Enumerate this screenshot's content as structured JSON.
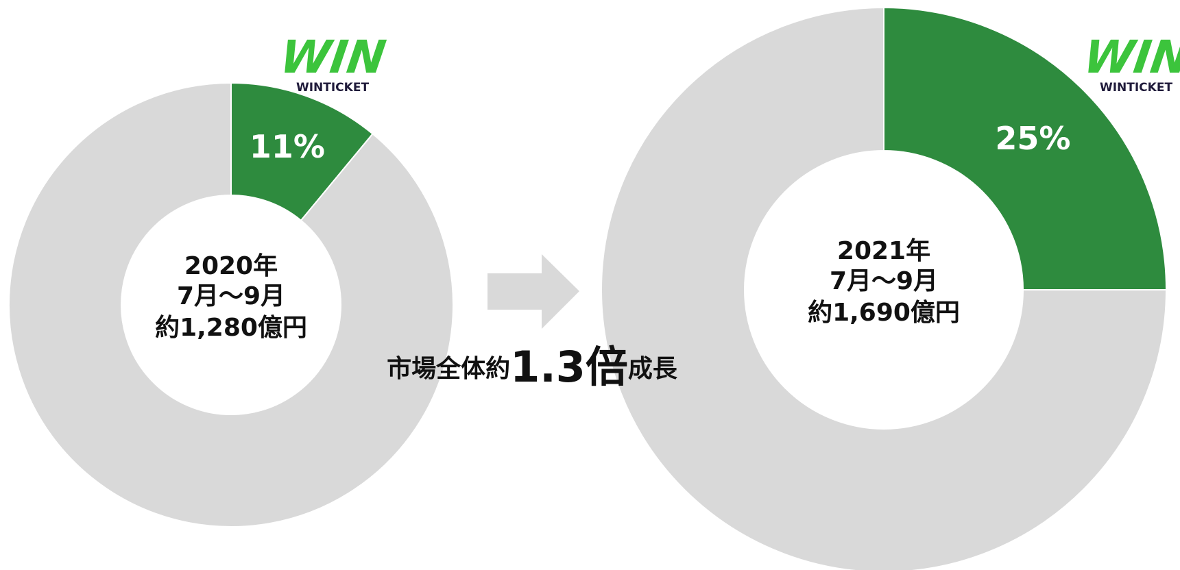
{
  "chart_data": [
    {
      "type": "donut",
      "values": [
        11,
        89
      ],
      "value_labels": [
        "11%",
        null
      ],
      "colors": [
        "#2e8b3e",
        "#d9d9d9"
      ],
      "center_text": [
        "2020年",
        "7月〜9月",
        "約1,280億円"
      ],
      "logo_mark": "WIN",
      "logo_text": "WINTICKET"
    },
    {
      "type": "donut",
      "values": [
        25,
        75
      ],
      "value_labels": [
        "25%",
        null
      ],
      "colors": [
        "#2e8b3e",
        "#d9d9d9"
      ],
      "center_text": [
        "2021年",
        "7月〜9月",
        "約1,690億円"
      ],
      "logo_mark": "WIN",
      "logo_text": "WINTICKET"
    }
  ],
  "annotation": [
    "市場全体約",
    "1.3倍",
    "成長"
  ]
}
